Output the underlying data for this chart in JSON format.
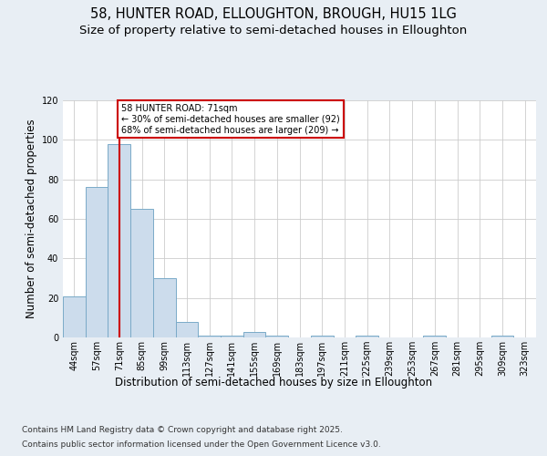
{
  "title_line1": "58, HUNTER ROAD, ELLOUGHTON, BROUGH, HU15 1LG",
  "title_line2": "Size of property relative to semi-detached houses in Elloughton",
  "xlabel": "Distribution of semi-detached houses by size in Elloughton",
  "ylabel": "Number of semi-detached properties",
  "categories": [
    "44sqm",
    "57sqm",
    "71sqm",
    "85sqm",
    "99sqm",
    "113sqm",
    "127sqm",
    "141sqm",
    "155sqm",
    "169sqm",
    "183sqm",
    "197sqm",
    "211sqm",
    "225sqm",
    "239sqm",
    "253sqm",
    "267sqm",
    "281sqm",
    "295sqm",
    "309sqm",
    "323sqm"
  ],
  "values": [
    21,
    76,
    98,
    65,
    30,
    8,
    1,
    1,
    3,
    1,
    0,
    1,
    0,
    1,
    0,
    0,
    1,
    0,
    0,
    1,
    0
  ],
  "bar_color": "#ccdcec",
  "bar_edge_color": "#7aaac8",
  "highlight_bar_index": 2,
  "annotation_title": "58 HUNTER ROAD: 71sqm",
  "annotation_line2": "← 30% of semi-detached houses are smaller (92)",
  "annotation_line3": "68% of semi-detached houses are larger (209) →",
  "annotation_box_color": "#ffffff",
  "annotation_box_edge_color": "#cc0000",
  "vline_color": "#cc0000",
  "ylim": [
    0,
    120
  ],
  "yticks": [
    0,
    20,
    40,
    60,
    80,
    100,
    120
  ],
  "footnote1": "Contains HM Land Registry data © Crown copyright and database right 2025.",
  "footnote2": "Contains public sector information licensed under the Open Government Licence v3.0.",
  "bg_color": "#e8eef4",
  "plot_bg_color": "#ffffff",
  "grid_color": "#cccccc",
  "title_fontsize": 10.5,
  "subtitle_fontsize": 9.5,
  "axis_label_fontsize": 8.5,
  "tick_fontsize": 7,
  "footnote_fontsize": 6.5
}
